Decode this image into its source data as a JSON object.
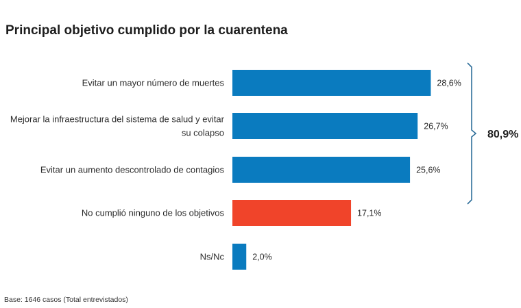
{
  "chart_data": {
    "type": "bar",
    "orientation": "horizontal",
    "title": "Principal objetivo cumplido por la cuarentena",
    "footnote": "Base: 1646 casos (Total entrevistados)",
    "categories": [
      [
        "Evitar un mayor número de muertes"
      ],
      [
        "Mejorar la infraestructura del sistema de salud y evitar",
        "su colapso"
      ],
      [
        "Evitar un aumento descontrolado de contagios"
      ],
      [
        "No cumplió ninguno de los objetivos"
      ],
      [
        "Ns/Nc"
      ]
    ],
    "values": [
      28.6,
      26.7,
      25.6,
      17.1,
      2.0
    ],
    "value_labels": [
      "28,6%",
      "26,7%",
      "25,6%",
      "17,1%",
      "2,0%"
    ],
    "bar_colors": [
      "#0a7bbf",
      "#0a7bbf",
      "#0a7bbf",
      "#f0442a",
      "#0a7bbf"
    ],
    "xlim": [
      0,
      30
    ],
    "grid": false,
    "annotations": [
      {
        "type": "bracket",
        "covers_categories": [
          0,
          1,
          2
        ],
        "label": "80,9%"
      }
    ]
  }
}
